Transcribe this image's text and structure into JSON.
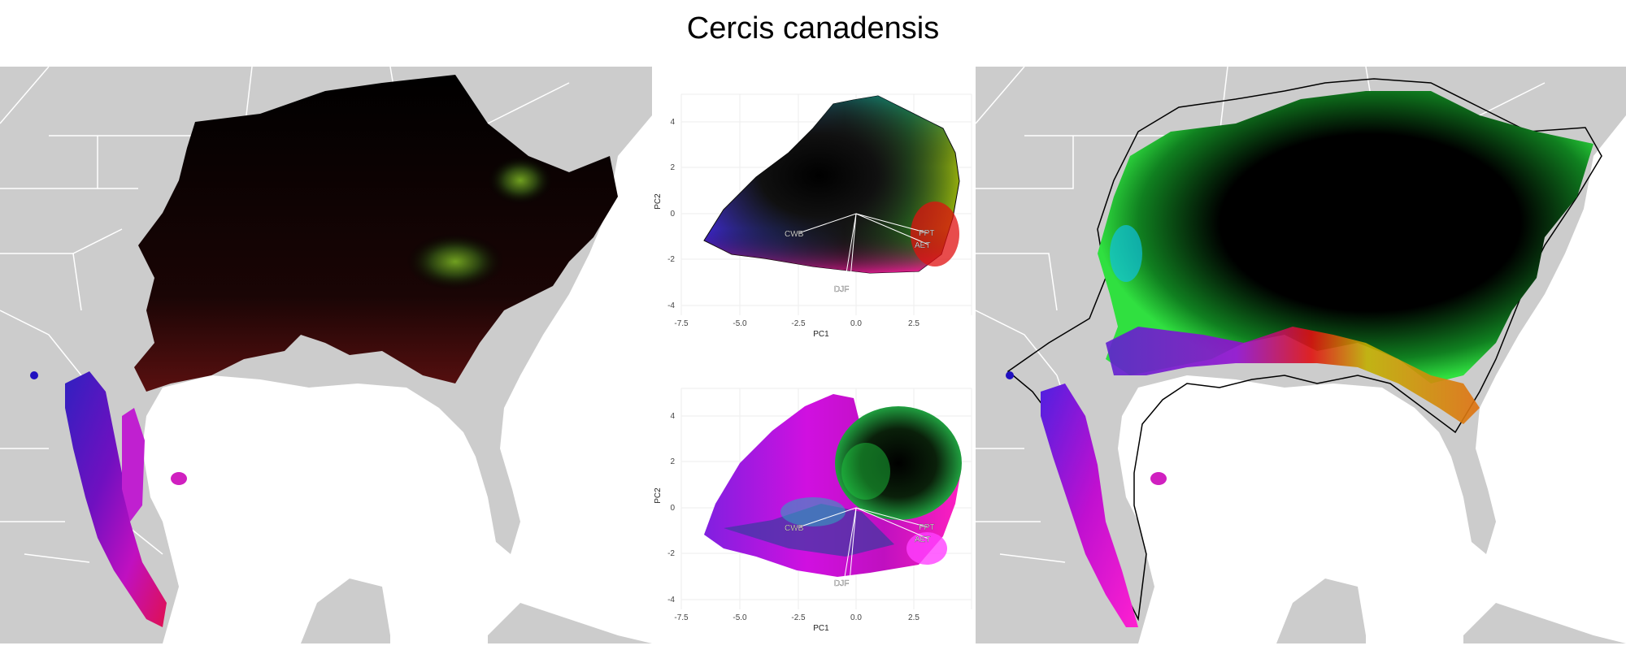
{
  "title": "Cercis canadensis",
  "colors": {
    "land": "#cccccc",
    "border": "#ffffff",
    "ocean": "#ffffff",
    "hull": "#000000"
  },
  "pca_plots": [
    {
      "xlabel": "PC1",
      "ylabel": "PC2",
      "xticks": [
        "-7.5",
        "-5.0",
        "-2.5",
        "0.0",
        "2.5"
      ],
      "yticks": [
        "4",
        "2",
        "0",
        "-2",
        "-4"
      ],
      "vectors": [
        "CWB",
        "PPT",
        "AET",
        "DJF"
      ]
    },
    {
      "xlabel": "PC1",
      "ylabel": "PC2",
      "xticks": [
        "-7.5",
        "-5.0",
        "-2.5",
        "0.0",
        "2.5"
      ],
      "yticks": [
        "4",
        "2",
        "0",
        "-2",
        "-4"
      ],
      "vectors": [
        "CWB",
        "PPT",
        "AET",
        "DJF"
      ]
    }
  ],
  "chart_data": {
    "type": "scatter",
    "xlabel": "PC1",
    "ylabel": "PC2",
    "xlim": [
      -8,
      5
    ],
    "ylim": [
      -4.2,
      5.5
    ],
    "loadings": [
      {
        "name": "CWB",
        "x": -3.0,
        "y": -0.9
      },
      {
        "name": "PPT",
        "x": 3.0,
        "y": -1.0
      },
      {
        "name": "AET",
        "x": 3.0,
        "y": -1.6
      },
      {
        "name": "DJF",
        "x": -0.5,
        "y": -3.3
      }
    ]
  }
}
